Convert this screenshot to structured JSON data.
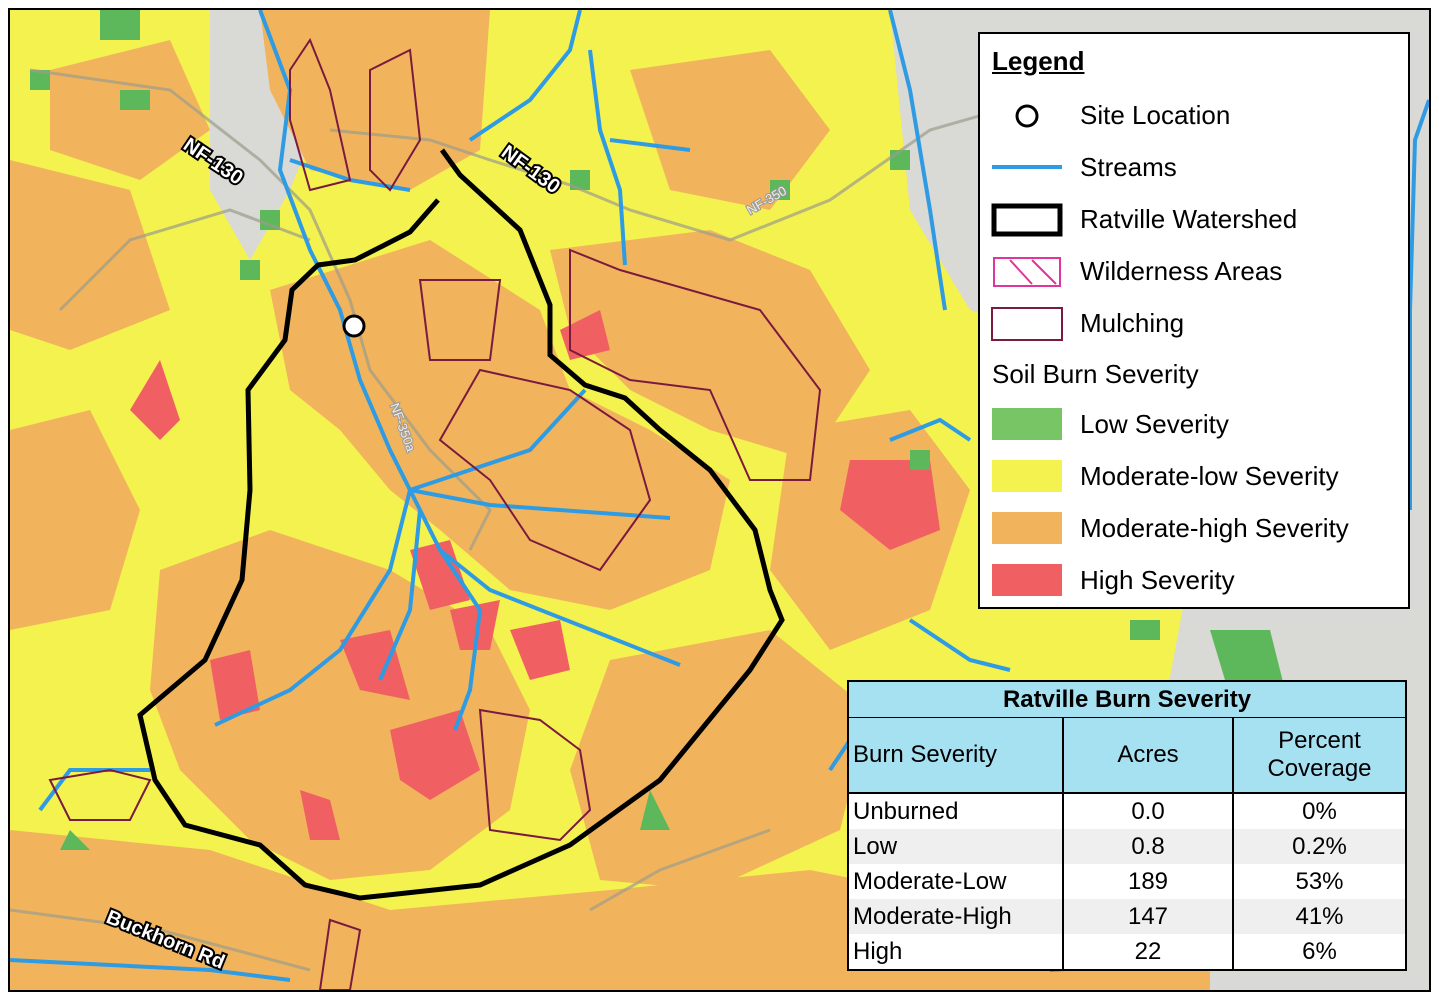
{
  "map": {
    "road_labels": [
      "NF-130",
      "NF-130",
      "NF-350",
      "NF-350a",
      "Buckhorn Rd"
    ]
  },
  "legend": {
    "title": "Legend",
    "items": [
      "Site Location",
      "Streams",
      "Ratville Watershed",
      "Wilderness Areas",
      "Mulching"
    ],
    "section": "Soil Burn Severity",
    "severity_items": [
      "Low Severity",
      "Moderate-low Severity",
      "Moderate-high Severity",
      "High Severity"
    ]
  },
  "table": {
    "title": "Ratville Burn Severity",
    "headers": [
      "Burn Severity",
      "Acres",
      "Percent Coverage"
    ],
    "rows": [
      [
        "Unburned",
        "0.0",
        "0%"
      ],
      [
        "Low",
        "0.8",
        "0.2%"
      ],
      [
        "Moderate-Low",
        "189",
        "53%"
      ],
      [
        "Moderate-High",
        "147",
        "41%"
      ],
      [
        "High",
        "22",
        "6%"
      ]
    ]
  }
}
